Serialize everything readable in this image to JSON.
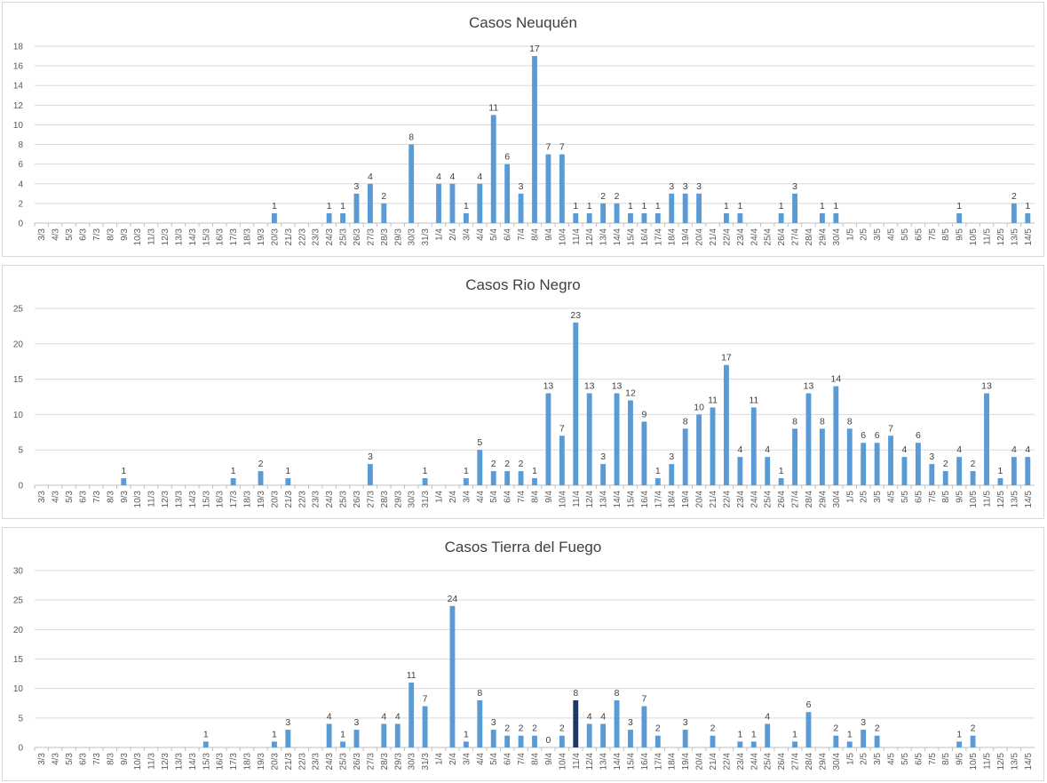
{
  "chart_data": [
    {
      "type": "bar",
      "title": "Casos Neuquén",
      "ylim": [
        0,
        18
      ],
      "yticks": [
        "0",
        "2",
        "4",
        "6",
        "8",
        "10",
        "12",
        "14",
        "16",
        "18"
      ],
      "grid": true,
      "color": "#5b9bd5",
      "categories": [
        "3/3",
        "4/3",
        "5/3",
        "6/3",
        "7/3",
        "8/3",
        "9/3",
        "10/3",
        "11/3",
        "12/3",
        "13/3",
        "14/3",
        "15/3",
        "16/3",
        "17/3",
        "18/3",
        "19/3",
        "20/3",
        "21/3",
        "22/3",
        "23/3",
        "24/3",
        "25/3",
        "26/3",
        "27/3",
        "28/3",
        "29/3",
        "30/3",
        "31/3",
        "1/4",
        "2/4",
        "3/4",
        "4/4",
        "5/4",
        "6/4",
        "7/4",
        "8/4",
        "9/4",
        "10/4",
        "11/4",
        "12/4",
        "13/4",
        "14/4",
        "15/4",
        "16/4",
        "17/4",
        "18/4",
        "19/4",
        "20/4",
        "21/4",
        "22/4",
        "23/4",
        "24/4",
        "25/4",
        "26/4",
        "27/4",
        "28/4",
        "29/4",
        "30/4",
        "1/5",
        "2/5",
        "3/5",
        "4/5",
        "5/5",
        "6/5",
        "7/5",
        "8/5",
        "9/5",
        "10/5",
        "11/5",
        "12/5",
        "13/5",
        "14/5"
      ],
      "values": [
        null,
        null,
        null,
        null,
        null,
        null,
        null,
        null,
        null,
        null,
        null,
        null,
        null,
        null,
        null,
        null,
        null,
        1,
        null,
        null,
        null,
        1,
        1,
        3,
        4,
        2,
        null,
        8,
        null,
        4,
        4,
        1,
        4,
        11,
        6,
        3,
        17,
        7,
        7,
        1,
        1,
        2,
        2,
        1,
        1,
        1,
        3,
        3,
        3,
        null,
        1,
        1,
        null,
        null,
        1,
        3,
        null,
        1,
        1,
        null,
        null,
        null,
        null,
        null,
        null,
        null,
        null,
        1,
        null,
        null,
        null,
        2,
        1
      ]
    },
    {
      "type": "bar",
      "title": "Casos Rio Negro",
      "ylim": [
        0,
        25
      ],
      "yticks": [
        "0",
        "5",
        "10",
        "15",
        "20",
        "25"
      ],
      "grid": true,
      "color": "#5b9bd5",
      "categories": [
        "3/3",
        "4/3",
        "5/3",
        "6/3",
        "7/3",
        "8/3",
        "9/3",
        "10/3",
        "11/3",
        "12/3",
        "13/3",
        "14/3",
        "15/3",
        "16/3",
        "17/3",
        "18/3",
        "19/3",
        "20/3",
        "21/3",
        "22/3",
        "23/3",
        "24/3",
        "25/3",
        "26/3",
        "27/3",
        "28/3",
        "29/3",
        "30/3",
        "31/3",
        "1/4",
        "2/4",
        "3/4",
        "4/4",
        "5/4",
        "6/4",
        "7/4",
        "8/4",
        "9/4",
        "10/4",
        "11/4",
        "12/4",
        "13/4",
        "14/4",
        "15/4",
        "16/4",
        "17/4",
        "18/4",
        "19/4",
        "20/4",
        "21/4",
        "22/4",
        "23/4",
        "24/4",
        "25/4",
        "26/4",
        "27/4",
        "28/4",
        "29/4",
        "30/4",
        "1/5",
        "2/5",
        "3/5",
        "4/5",
        "5/5",
        "6/5",
        "7/5",
        "8/5",
        "9/5",
        "10/5",
        "11/5",
        "12/5",
        "13/5",
        "14/5"
      ],
      "values": [
        null,
        null,
        null,
        null,
        null,
        null,
        1,
        null,
        null,
        null,
        null,
        null,
        null,
        null,
        1,
        null,
        2,
        null,
        1,
        null,
        null,
        null,
        null,
        null,
        3,
        null,
        null,
        null,
        1,
        null,
        null,
        1,
        5,
        2,
        2,
        2,
        1,
        13,
        7,
        23,
        13,
        3,
        13,
        12,
        9,
        1,
        3,
        8,
        10,
        11,
        17,
        4,
        11,
        4,
        1,
        8,
        13,
        8,
        14,
        8,
        6,
        6,
        7,
        4,
        6,
        3,
        2,
        4,
        2,
        13,
        1,
        4,
        4
      ]
    },
    {
      "type": "bar",
      "title": "Casos Tierra del Fuego",
      "ylim": [
        0,
        30
      ],
      "yticks": [
        "0",
        "5",
        "10",
        "15",
        "20",
        "25",
        "30"
      ],
      "grid": true,
      "color": "#5b9bd5",
      "highlight": {
        "category": "11/4",
        "color": "#1f3864"
      },
      "categories": [
        "3/3",
        "4/3",
        "5/3",
        "6/3",
        "7/3",
        "8/3",
        "9/3",
        "10/3",
        "11/3",
        "12/3",
        "13/3",
        "14/3",
        "15/3",
        "16/3",
        "17/3",
        "18/3",
        "19/3",
        "20/3",
        "21/3",
        "22/3",
        "23/3",
        "24/3",
        "25/3",
        "26/3",
        "27/3",
        "28/3",
        "29/3",
        "30/3",
        "31/3",
        "1/4",
        "2/4",
        "3/4",
        "4/4",
        "5/4",
        "6/4",
        "7/4",
        "8/4",
        "9/4",
        "10/4",
        "11/4",
        "12/4",
        "13/4",
        "14/4",
        "15/4",
        "16/4",
        "17/4",
        "18/4",
        "19/4",
        "20/4",
        "21/4",
        "22/4",
        "23/4",
        "24/4",
        "25/4",
        "26/4",
        "27/4",
        "28/4",
        "29/4",
        "30/4",
        "1/5",
        "2/5",
        "3/5",
        "4/5",
        "5/5",
        "6/5",
        "7/5",
        "8/5",
        "9/5",
        "10/5",
        "11/5",
        "12/5",
        "13/5",
        "14/5"
      ],
      "values": [
        null,
        null,
        null,
        null,
        null,
        null,
        null,
        null,
        null,
        null,
        null,
        null,
        1,
        null,
        null,
        null,
        null,
        1,
        3,
        null,
        null,
        4,
        1,
        3,
        null,
        4,
        4,
        11,
        7,
        null,
        24,
        1,
        8,
        3,
        2,
        2,
        2,
        0,
        2,
        8,
        4,
        4,
        8,
        3,
        7,
        2,
        null,
        3,
        null,
        2,
        null,
        1,
        1,
        4,
        null,
        1,
        6,
        null,
        2,
        1,
        3,
        2,
        null,
        null,
        null,
        null,
        null,
        1,
        2,
        null,
        null,
        null,
        null
      ]
    }
  ]
}
